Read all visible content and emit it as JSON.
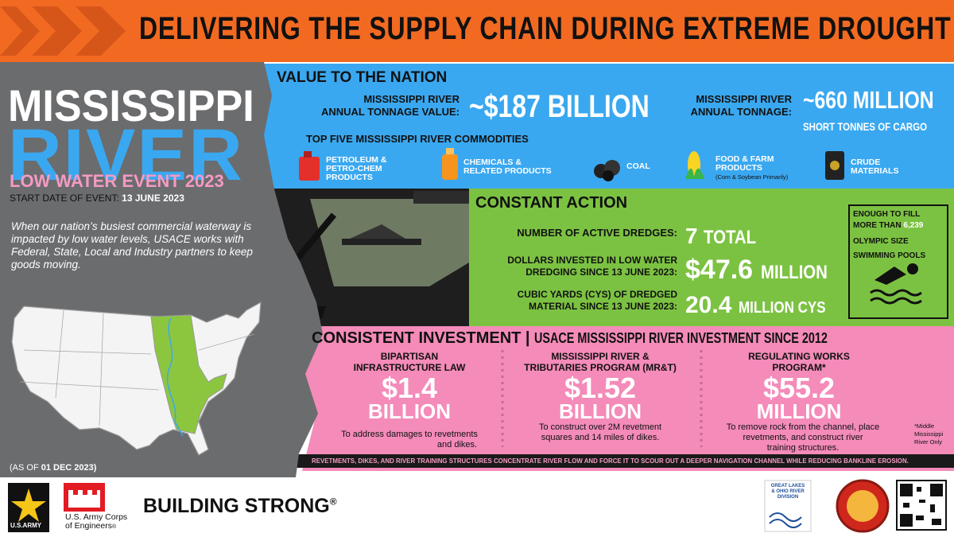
{
  "header": {
    "title": "DELIVERING THE SUPPLY CHAIN DURING EXTREME DROUGHT"
  },
  "left": {
    "title1": "MISSISSIPPI",
    "title2": "RIVER",
    "subtitle": "LOW WATER EVENT 2023",
    "start_label": "START DATE OF EVENT:",
    "start_date": "13 JUNE 2023",
    "intro": "When our nation’s busiest commercial waterway is impacted by low water levels, USACE works with Federal, State, Local and Industry partners to keep goods moving.",
    "as_of_label": "(AS OF",
    "as_of_date": "01 DEC 2023)"
  },
  "value": {
    "title": "VALUE TO THE NATION",
    "stat1_label": [
      "MISSISSIPPI RIVER",
      "ANNUAL TONNAGE VALUE:"
    ],
    "stat1_value": "~$187 BILLION",
    "stat2_label": [
      "MISSISSIPPI RIVER",
      "ANNUAL TONNAGE:"
    ],
    "stat2_value": "~660 MILLION",
    "stat2_unit": "SHORT TONNES OF CARGO",
    "commodities_title": "TOP FIVE MISSISSIPPI RIVER COMMODITIES",
    "commodities": [
      {
        "label": [
          "PETROLEUM &",
          "PETRO-CHEM",
          "PRODUCTS"
        ]
      },
      {
        "label": [
          "CHEMICALS &",
          "RELATED PRODUCTS"
        ]
      },
      {
        "label": [
          "COAL"
        ]
      },
      {
        "label": [
          "FOOD & FARM",
          "PRODUCTS"
        ],
        "note": "(Corn & Soybean Primarily)"
      },
      {
        "label": [
          "CRUDE",
          "MATERIALS"
        ]
      }
    ]
  },
  "constant": {
    "title": "CONSTANT ACTION",
    "rows": [
      {
        "label": [
          "NUMBER OF ACTIVE DREDGES:"
        ],
        "value": "7",
        "unit": "TOTAL"
      },
      {
        "label": [
          "DOLLARS INVESTED IN LOW WATER",
          "DREDGING SINCE 13 JUNE 2023:"
        ],
        "value": "$47.6",
        "unit": "MILLION"
      },
      {
        "label": [
          "CUBIC YARDS (CYS) OF DREDGED",
          "MATERIAL SINCE 13 JUNE 2023:"
        ],
        "value": "20.4",
        "unit": "MILLION CYS"
      }
    ],
    "pools": {
      "line1": "ENOUGH TO FILL",
      "line2": "MORE THAN",
      "count": "6,239",
      "line3": "OLYMPIC SIZE",
      "line4": "SWIMMING POOLS"
    }
  },
  "investment": {
    "title": "CONSISTENT INVESTMENT",
    "separator": "|",
    "subtitle": "USACE MISSISSIPPI RIVER INVESTMENT SINCE 2012",
    "columns": [
      {
        "name": [
          "BIPARTISAN",
          "INFRASTRUCTURE LAW"
        ],
        "amount": "$1.4",
        "unit": "BILLION",
        "description": [
          "To address damages to revetments",
          "and dikes."
        ]
      },
      {
        "name": [
          "MISSISSIPPI RIVER &",
          "TRIBUTARIES PROGRAM (MR&T)"
        ],
        "amount": "$1.52",
        "unit": "BILLION",
        "description": [
          "To construct over 2M revetment",
          "squares and 14 miles of dikes."
        ]
      },
      {
        "name": [
          "REGULATING WORKS",
          "PROGRAM*"
        ],
        "amount": "$55.2",
        "unit": "MILLION",
        "description": [
          "To remove rock from the channel, place",
          "revetments, and construct river",
          "training structures."
        ]
      }
    ],
    "footnote": [
      "*Middle",
      "Mississippi",
      "River Only"
    ],
    "banner": "REVETMENTS, DIKES, AND RIVER TRAINING STRUCTURES CONCENTRATE RIVER FLOW AND FORCE IT TO SCOUR OUT A DEEPER NAVIGATION CHANNEL WHILE REDUCING BANKLINE EROSION."
  },
  "footer": {
    "army": "U.S.ARMY",
    "usace": [
      "U.S. Army Corps",
      "of Engineers"
    ],
    "usace_mark": "®",
    "slogan": "BUILDING STRONG",
    "slogan_mark": "®",
    "division": [
      "GREAT LAKES",
      "& OHIO RIVER",
      "DIVISION"
    ]
  }
}
